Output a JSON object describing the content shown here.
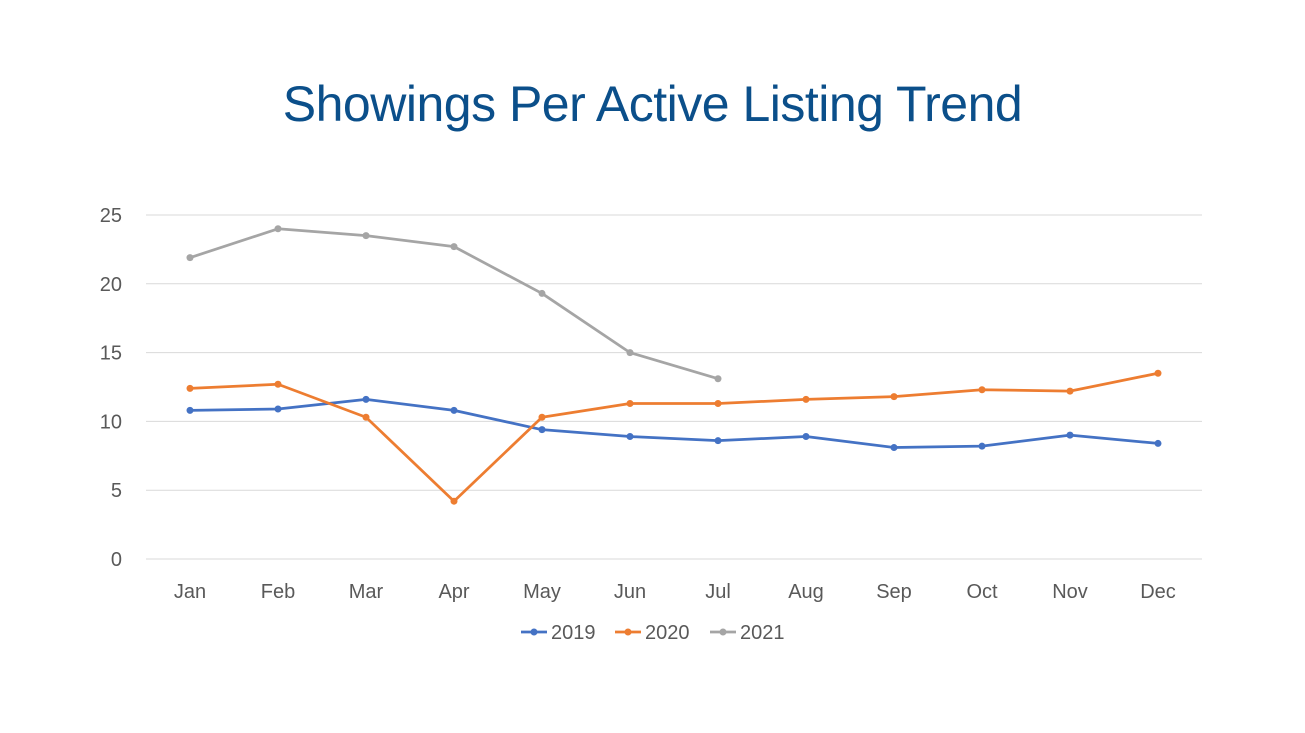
{
  "chart_data": {
    "type": "line",
    "title": "Showings Per Active Listing Trend",
    "xlabel": "",
    "ylabel": "",
    "categories": [
      "Jan",
      "Feb",
      "Mar",
      "Apr",
      "May",
      "Jun",
      "Jul",
      "Aug",
      "Sep",
      "Oct",
      "Nov",
      "Dec"
    ],
    "ylim": [
      0,
      25
    ],
    "yticks": [
      0,
      5,
      10,
      15,
      20,
      25
    ],
    "grid": true,
    "legend_position": "bottom",
    "series": [
      {
        "name": "2019",
        "color": "#4472C4",
        "values": [
          10.8,
          10.9,
          11.6,
          10.8,
          9.4,
          8.9,
          8.6,
          8.9,
          8.1,
          8.2,
          9.0,
          8.4
        ]
      },
      {
        "name": "2020",
        "color": "#ED7D31",
        "values": [
          12.4,
          12.7,
          10.3,
          4.2,
          10.3,
          11.3,
          11.3,
          11.6,
          11.8,
          12.3,
          12.2,
          13.5
        ]
      },
      {
        "name": "2021",
        "color": "#A5A5A5",
        "values": [
          21.9,
          24.0,
          23.5,
          22.7,
          19.3,
          15.0,
          13.1,
          null,
          null,
          null,
          null,
          null
        ]
      }
    ]
  }
}
